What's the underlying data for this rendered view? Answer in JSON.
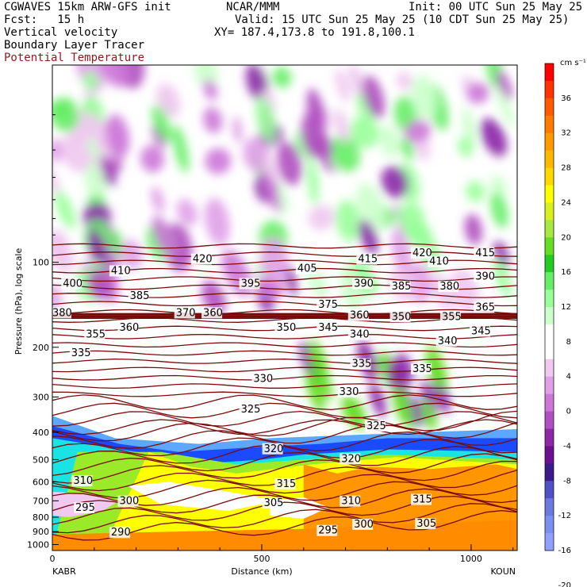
{
  "header": {
    "title_left": "CGWAVES 15km ARW-GFS init",
    "org": "NCAR/MMM",
    "init": "Init: 00 UTC Sun 25 May 25",
    "fcst": "Fcst:   15 h",
    "valid": "Valid: 15 UTC Sun 25 May 25 (10 CDT Sun 25 May 25)",
    "field1": "Vertical velocity",
    "field2": "Boundary Layer Tracer",
    "field3": "Potential Temperature",
    "xy": "XY= 187.4,173.8 to 191.8,100.1"
  },
  "colors": {
    "theta_contour": "#7a0a0a",
    "field3_text": "#8b1a1a"
  },
  "chart_data": {
    "type": "heatmap",
    "xlabel": "Distance (km)",
    "ylabel": "Pressure (hPa), log scale",
    "x_ticks": [
      "0",
      "500",
      "1000"
    ],
    "x_tick_values": [
      0,
      500,
      1000
    ],
    "x_range": [
      0,
      1110
    ],
    "y_ticks": [
      "100",
      "200",
      "300",
      "400",
      "500",
      "600",
      "700",
      "800",
      "900",
      "1000"
    ],
    "y_tick_values": [
      100,
      200,
      300,
      400,
      500,
      600,
      700,
      800,
      900,
      1000
    ],
    "y_range": [
      1050,
      20
    ],
    "y_scale": "log",
    "left_station": "KABR",
    "right_station": "KOUN",
    "colorbar": {
      "unit": "cm s⁻¹",
      "labels": [
        "36",
        "32",
        "28",
        "24",
        "20",
        "16",
        "12",
        "8",
        "4",
        "0",
        "-4",
        "-8",
        "-12",
        "-16",
        "-20"
      ],
      "colors": [
        "#ff0000",
        "#ff3300",
        "#ff5a00",
        "#ff7a00",
        "#ff9a00",
        "#ffb800",
        "#ffd800",
        "#ffff00",
        "#d8f020",
        "#a8e840",
        "#66dd22",
        "#22cc22",
        "#66ee66",
        "#99ff99",
        "#ccffcc",
        "#ffffff",
        "#ffffff",
        "#f0c8f0",
        "#e0a0e8",
        "#cc77d8",
        "#b050c0",
        "#8c28a8",
        "#6a1090",
        "#3c1a8c",
        "#5050c8",
        "#6a7ae0",
        "#7a90f0",
        "#8fa0ff"
      ]
    },
    "theta_labels": [
      {
        "text": "420",
        "x": 335,
        "p": 100
      },
      {
        "text": "415",
        "x": 730,
        "p": 100
      },
      {
        "text": "420",
        "x": 860,
        "p": 95
      },
      {
        "text": "415",
        "x": 1010,
        "p": 95
      },
      {
        "text": "410",
        "x": 140,
        "p": 110
      },
      {
        "text": "405",
        "x": 585,
        "p": 108
      },
      {
        "text": "410",
        "x": 900,
        "p": 102
      },
      {
        "text": "400",
        "x": 25,
        "p": 122
      },
      {
        "text": "395",
        "x": 450,
        "p": 122
      },
      {
        "text": "390",
        "x": 720,
        "p": 122
      },
      {
        "text": "385",
        "x": 810,
        "p": 125
      },
      {
        "text": "380",
        "x": 925,
        "p": 125
      },
      {
        "text": "390",
        "x": 1010,
        "p": 115
      },
      {
        "text": "385",
        "x": 185,
        "p": 135
      },
      {
        "text": "375",
        "x": 635,
        "p": 145
      },
      {
        "text": "380",
        "x": 0,
        "p": 155
      },
      {
        "text": "370",
        "x": 295,
        "p": 155
      },
      {
        "text": "360",
        "x": 360,
        "p": 155
      },
      {
        "text": "365",
        "x": 1010,
        "p": 148
      },
      {
        "text": "360",
        "x": 710,
        "p": 158
      },
      {
        "text": "350",
        "x": 810,
        "p": 160
      },
      {
        "text": "355",
        "x": 930,
        "p": 160
      },
      {
        "text": "360",
        "x": 160,
        "p": 175
      },
      {
        "text": "350",
        "x": 535,
        "p": 175
      },
      {
        "text": "345",
        "x": 635,
        "p": 175
      },
      {
        "text": "355",
        "x": 80,
        "p": 185
      },
      {
        "text": "340",
        "x": 710,
        "p": 185
      },
      {
        "text": "345",
        "x": 1000,
        "p": 180
      },
      {
        "text": "340",
        "x": 920,
        "p": 195
      },
      {
        "text": "335",
        "x": 45,
        "p": 215
      },
      {
        "text": "335",
        "x": 715,
        "p": 235
      },
      {
        "text": "335",
        "x": 860,
        "p": 245
      },
      {
        "text": "330",
        "x": 480,
        "p": 265
      },
      {
        "text": "330",
        "x": 685,
        "p": 295
      },
      {
        "text": "325",
        "x": 450,
        "p": 340
      },
      {
        "text": "325",
        "x": 750,
        "p": 390
      },
      {
        "text": "320",
        "x": 505,
        "p": 470
      },
      {
        "text": "320",
        "x": 690,
        "p": 510
      },
      {
        "text": "310",
        "x": 50,
        "p": 610
      },
      {
        "text": "315",
        "x": 535,
        "p": 625
      },
      {
        "text": "315",
        "x": 860,
        "p": 710
      },
      {
        "text": "310",
        "x": 690,
        "p": 720
      },
      {
        "text": "300",
        "x": 160,
        "p": 720
      },
      {
        "text": "305",
        "x": 505,
        "p": 730
      },
      {
        "text": "295",
        "x": 55,
        "p": 760
      },
      {
        "text": "305",
        "x": 870,
        "p": 865
      },
      {
        "text": "300",
        "x": 720,
        "p": 870
      },
      {
        "text": "295",
        "x": 635,
        "p": 915
      },
      {
        "text": "290",
        "x": 140,
        "p": 930
      }
    ]
  }
}
